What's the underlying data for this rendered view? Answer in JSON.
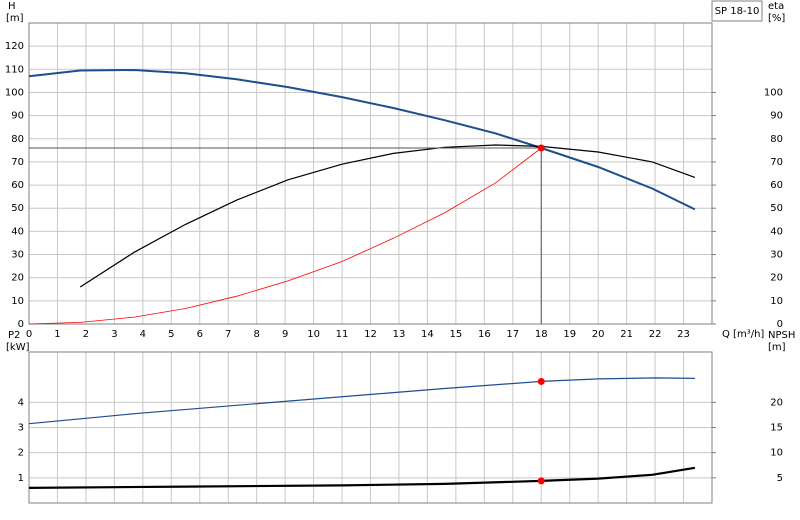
{
  "chart_data": [
    {
      "type": "line",
      "label": "SP 18-10",
      "ylabel": "H",
      "yunit": "[m]",
      "y2label": "eta",
      "y2unit": "[%]",
      "xlabel": "Q [m³/h]",
      "xlim": [
        0,
        24
      ],
      "xticks": [
        0,
        1,
        2,
        3,
        4,
        5,
        6,
        7,
        8,
        9,
        10,
        11,
        12,
        13,
        14,
        15,
        16,
        17,
        18,
        19,
        20,
        21,
        22,
        23
      ],
      "xtick_labels": true,
      "ylim": [
        0,
        130
      ],
      "yticks": [
        0,
        10,
        20,
        30,
        40,
        50,
        60,
        70,
        80,
        90,
        100,
        110,
        120
      ],
      "y2lim": [
        0,
        130
      ],
      "y2ticks": [
        0,
        10,
        20,
        30,
        40,
        50,
        60,
        70,
        80,
        90,
        100
      ],
      "grid": true,
      "series": [
        {
          "color": "#1f4e8c",
          "width": 2,
          "x": [
            0,
            1.8,
            3.7,
            5.5,
            7.3,
            9.1,
            11,
            12.8,
            14.6,
            16.4,
            18,
            20,
            21.9,
            23.4
          ],
          "values": [
            107,
            109.5,
            109.7,
            108.3,
            105.7,
            102.3,
            98,
            93.3,
            88,
            82.3,
            76,
            67.8,
            58.5,
            49.5
          ]
        },
        {
          "color": "#000000",
          "width": 1.2,
          "axis": "y2",
          "x": [
            1.8,
            3.7,
            5.5,
            7.3,
            9.1,
            11,
            12.8,
            14.6,
            16.4,
            18,
            20,
            21.9,
            23.4
          ],
          "values": [
            16,
            31,
            43,
            53.5,
            62.3,
            69,
            73.7,
            76.3,
            77.3,
            76.7,
            74.3,
            70,
            63.3
          ]
        },
        {
          "color": "#ff0000",
          "width": 0.8,
          "x": [
            0,
            1.8,
            3.7,
            5.5,
            7.3,
            9.1,
            11,
            12.8,
            14.6,
            16.4,
            18
          ],
          "values": [
            0,
            0.7,
            3,
            6.7,
            12,
            18.6,
            27,
            37,
            48,
            61,
            76
          ]
        },
        {
          "color": "#ff0000",
          "marker": true,
          "crosshair": true,
          "x": [
            18
          ],
          "values": [
            76
          ]
        }
      ]
    },
    {
      "type": "line",
      "ylabel": "P2",
      "yunit": "[kW]",
      "y2label": "NPSH",
      "y2unit": "[m]",
      "xlim": [
        0,
        24
      ],
      "xticks": [
        0,
        1,
        2,
        3,
        4,
        5,
        6,
        7,
        8,
        9,
        10,
        11,
        12,
        13,
        14,
        15,
        16,
        17,
        18,
        19,
        20,
        21,
        22,
        23
      ],
      "xtick_labels": false,
      "ylim": [
        0,
        6
      ],
      "yticks": [
        1,
        2,
        3,
        4
      ],
      "y2lim": [
        0,
        30
      ],
      "y2ticks": [
        5,
        10,
        15,
        20
      ],
      "grid": true,
      "series": [
        {
          "color": "#1f4e8c",
          "width": 1.2,
          "x": [
            0,
            3.7,
            9.1,
            14.6,
            18,
            20,
            22,
            23.4
          ],
          "values": [
            3.15,
            3.55,
            4.05,
            4.55,
            4.83,
            4.93,
            4.97,
            4.95
          ]
        },
        {
          "color": "#000000",
          "width": 2.2,
          "axis": "y2",
          "x": [
            0,
            5.5,
            11,
            14.6,
            18,
            20,
            21.9,
            23.4
          ],
          "values": [
            3,
            3.25,
            3.5,
            3.8,
            4.4,
            4.85,
            5.6,
            7
          ]
        },
        {
          "color": "#ff0000",
          "marker": true,
          "x": [
            18
          ],
          "values": [
            4.83
          ]
        },
        {
          "color": "#ff0000",
          "marker": true,
          "axis": "y2",
          "x": [
            18
          ],
          "values": [
            4.4
          ]
        }
      ]
    }
  ]
}
